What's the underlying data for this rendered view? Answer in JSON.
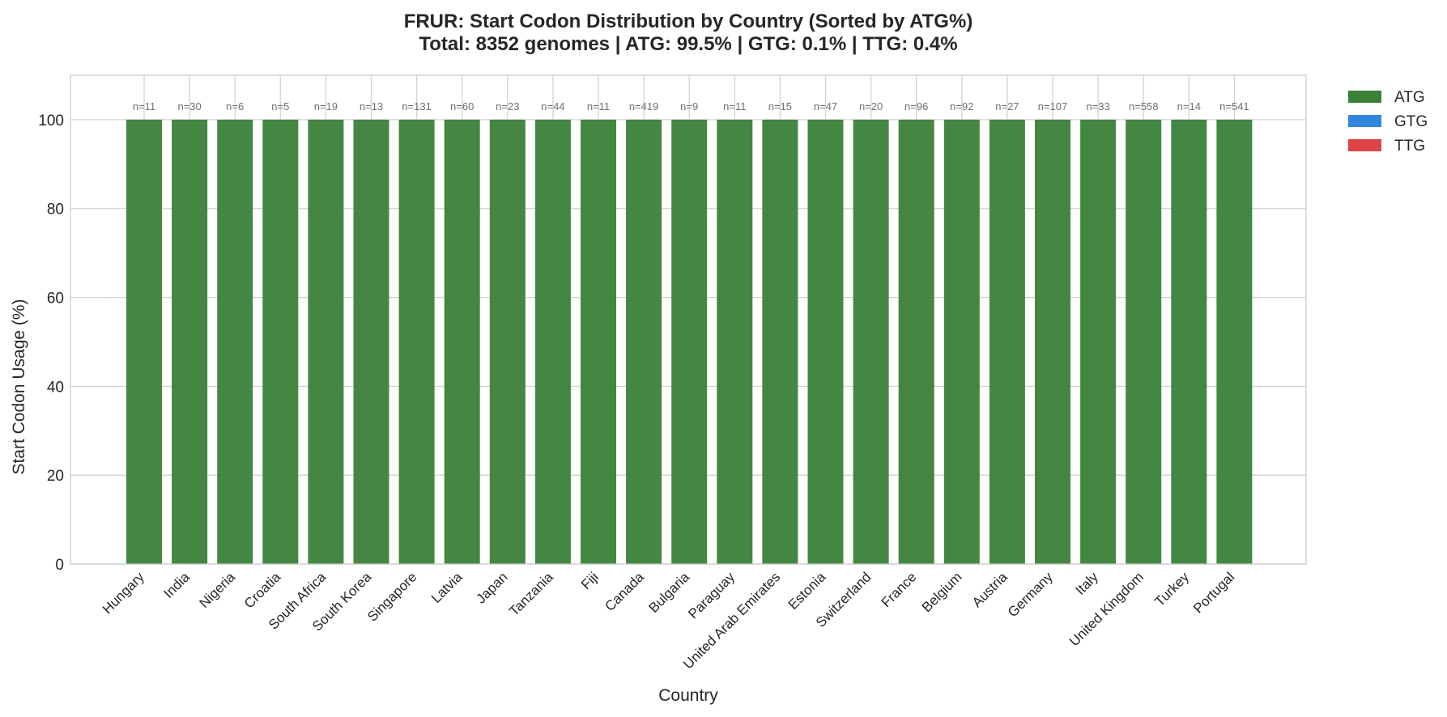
{
  "chart_data": {
    "type": "bar",
    "stacked": true,
    "title": "FRUR: Start Codon Distribution by Country (Sorted by ATG%)",
    "subtitle": "Total: 8352 genomes | ATG: 99.5% | GTG: 0.1% | TTG: 0.4%",
    "xlabel": "Country",
    "ylabel": "Start Codon Usage (%)",
    "ylim": [
      0,
      110
    ],
    "yticks": [
      0,
      20,
      40,
      60,
      80,
      100
    ],
    "grid": true,
    "legend_position": "outside-top-right",
    "categories": [
      "Hungary",
      "India",
      "Nigeria",
      "Croatia",
      "South Africa",
      "South Korea",
      "Singapore",
      "Latvia",
      "Japan",
      "Tanzania",
      "Fiji",
      "Canada",
      "Bulgaria",
      "Paraguay",
      "United Arab Emirates",
      "Estonia",
      "Switzerland",
      "France",
      "Belgium",
      "Austria",
      "Germany",
      "Italy",
      "United Kingdom",
      "Turkey",
      "Portugal"
    ],
    "n_labels": [
      "n=11",
      "n=30",
      "n=6",
      "n=5",
      "n=19",
      "n=13",
      "n=131",
      "n=60",
      "n=23",
      "n=44",
      "n=11",
      "n=419",
      "n=9",
      "n=11",
      "n=15",
      "n=47",
      "n=20",
      "n=96",
      "n=92",
      "n=27",
      "n=107",
      "n=33",
      "n=558",
      "n=14",
      "n=541"
    ],
    "series": [
      {
        "name": "ATG",
        "color": "#3a8138",
        "values": [
          100,
          100,
          100,
          100,
          100,
          100,
          100,
          100,
          100,
          100,
          100,
          100,
          100,
          100,
          100,
          100,
          100,
          100,
          100,
          100,
          100,
          100,
          100,
          100,
          100
        ]
      },
      {
        "name": "GTG",
        "color": "#2f86dc",
        "values": [
          0,
          0,
          0,
          0,
          0,
          0,
          0,
          0,
          0,
          0,
          0,
          0,
          0,
          0,
          0,
          0,
          0,
          0,
          0,
          0,
          0,
          0,
          0,
          0,
          0
        ]
      },
      {
        "name": "TTG",
        "color": "#dc4446",
        "values": [
          0,
          0,
          0,
          0,
          0,
          0,
          0,
          0,
          0,
          0,
          0,
          0,
          0,
          0,
          0,
          0,
          0,
          0,
          0,
          0,
          0,
          0,
          0,
          0,
          0
        ]
      }
    ]
  }
}
